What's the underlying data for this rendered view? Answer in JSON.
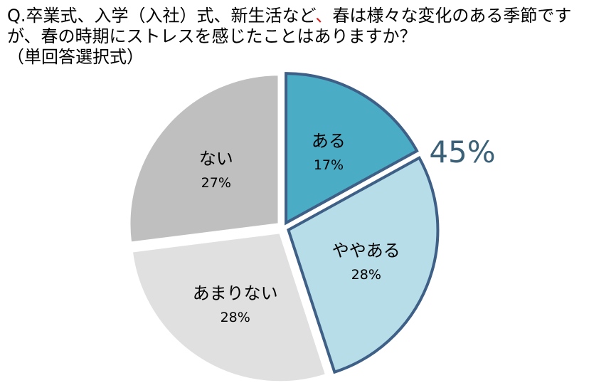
{
  "question": {
    "line1_a": "Q.卒業式、入学（入社）式、新生活など",
    "line1_b": "、",
    "line1_c": "春は様々な変化のある季節です",
    "line2": "が、春の時期にストレスを感じたことはありますか？",
    "line3": "（単回答選択式）"
  },
  "chart_data": {
    "type": "pie",
    "title": "",
    "slices": [
      {
        "label": "ある",
        "value": 17,
        "value_label": "17%",
        "color": "#4bacc6"
      },
      {
        "label": "ややある",
        "value": 28,
        "value_label": "28%",
        "color": "#b7dde8"
      },
      {
        "label": "あまりない",
        "value": 28,
        "value_label": "28%",
        "color": "#e0e0e0"
      },
      {
        "label": "ない",
        "value": 27,
        "value_label": "27%",
        "color": "#bfbfbf"
      }
    ],
    "highlight": {
      "slices": [
        "ある",
        "ややある"
      ],
      "total_label": "45%",
      "outline_color": "#3e5f86"
    },
    "legend": "none"
  }
}
